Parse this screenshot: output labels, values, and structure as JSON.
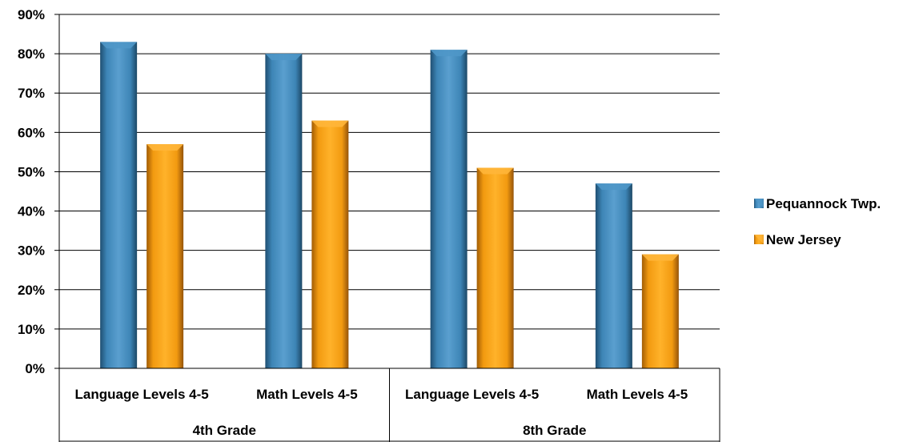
{
  "chart_data": {
    "type": "bar",
    "y_ticks": [
      "0%",
      "10%",
      "20%",
      "30%",
      "40%",
      "50%",
      "60%",
      "70%",
      "80%",
      "90%"
    ],
    "ylim": [
      0,
      90
    ],
    "grid": true,
    "legend_position": "right",
    "groups": [
      {
        "label": "4th Grade",
        "categories": [
          "Language Levels 4-5",
          "Math Levels 4-5"
        ]
      },
      {
        "label": "8th Grade",
        "categories": [
          "Language Levels 4-5",
          "Math Levels 4-5"
        ]
      }
    ],
    "categories": [
      "Language Levels 4-5",
      "Math Levels 4-5",
      "Language Levels 4-5",
      "Math Levels 4-5"
    ],
    "series": [
      {
        "name": "Pequannock Twp.",
        "color": "#3b7fae",
        "values": [
          83,
          80,
          81,
          47
        ]
      },
      {
        "name": "New Jersey",
        "color": "#f59d0e",
        "values": [
          57,
          63,
          51,
          29
        ]
      }
    ]
  }
}
